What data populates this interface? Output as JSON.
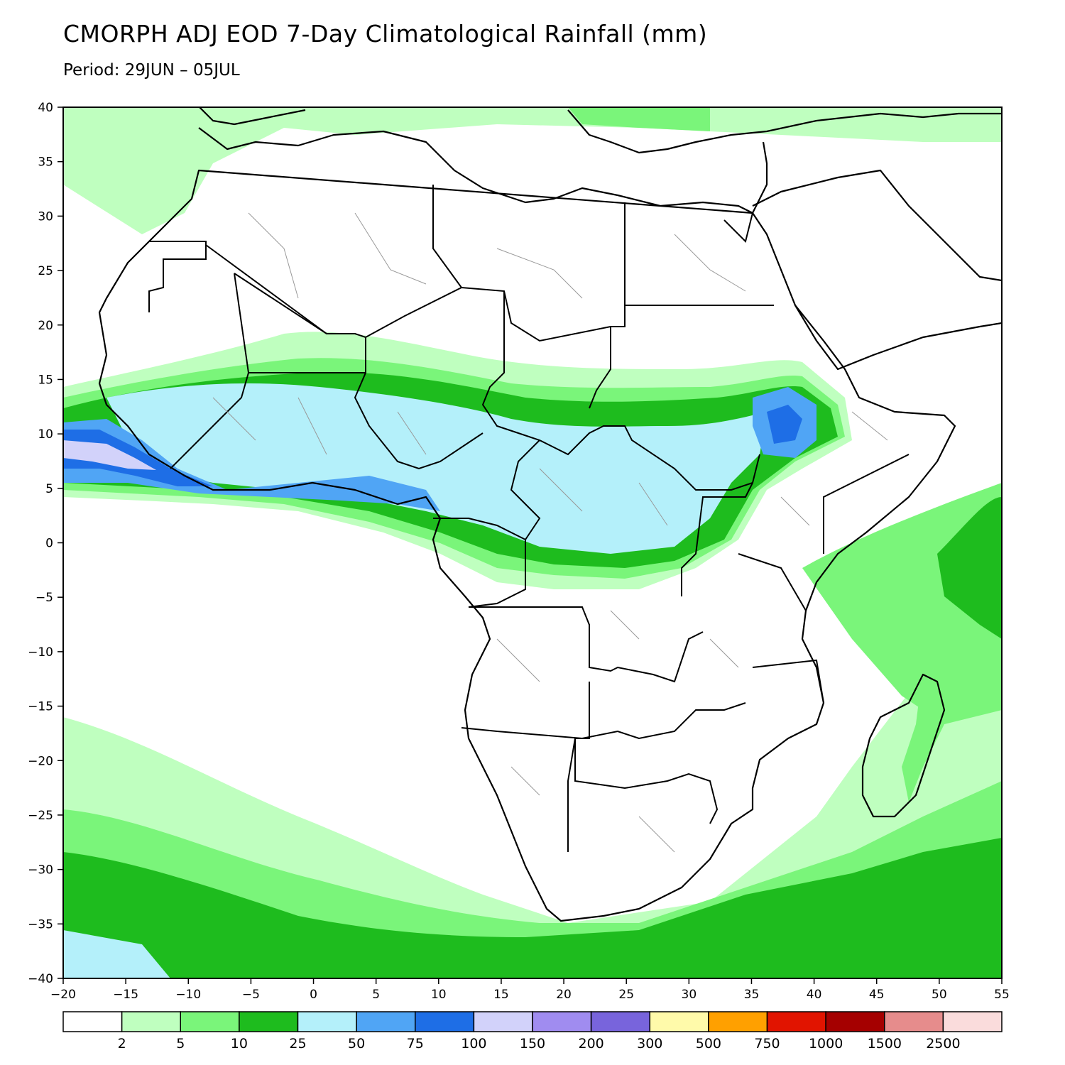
{
  "title": "CMORPH ADJ EOD 7-Day Climatological Rainfall (mm)",
  "subtitle": "Period: 29JUN – 05JUL",
  "map": {
    "lon_range": [
      -20,
      55
    ],
    "lat_range": [
      -40,
      40
    ],
    "lon_ticks": [
      -20,
      -15,
      -10,
      -5,
      0,
      5,
      10,
      15,
      20,
      25,
      30,
      35,
      40,
      45,
      50,
      55
    ],
    "lat_ticks": [
      40,
      35,
      30,
      25,
      20,
      15,
      10,
      5,
      0,
      -5,
      -10,
      -15,
      -20,
      -25,
      -30,
      -35,
      -40
    ],
    "lon_tick_labels": [
      "−20",
      "−15",
      "−10",
      "−5",
      "0",
      "5",
      "10",
      "15",
      "20",
      "25",
      "30",
      "35",
      "40",
      "45",
      "50",
      "55"
    ],
    "lat_tick_labels": [
      "40",
      "35",
      "30",
      "25",
      "20",
      "15",
      "10",
      "5",
      "0",
      "−5",
      "−10",
      "−15",
      "−20",
      "−25",
      "−30",
      "−35",
      "−40"
    ]
  },
  "colorbar": {
    "colors": [
      "#ffffff",
      "#bfffbf",
      "#7af57a",
      "#1ebc1e",
      "#b4f0fa",
      "#50a5f5",
      "#1e6ee6",
      "#d2d2fa",
      "#a08cf0",
      "#7864dc",
      "#fffaaa",
      "#ffa000",
      "#e11400",
      "#a50000",
      "#e68c8c",
      "#fadcdc"
    ],
    "labels": [
      "2",
      "5",
      "10",
      "25",
      "50",
      "75",
      "100",
      "150",
      "200",
      "300",
      "500",
      "750",
      "1000",
      "1500",
      "2500"
    ]
  }
}
